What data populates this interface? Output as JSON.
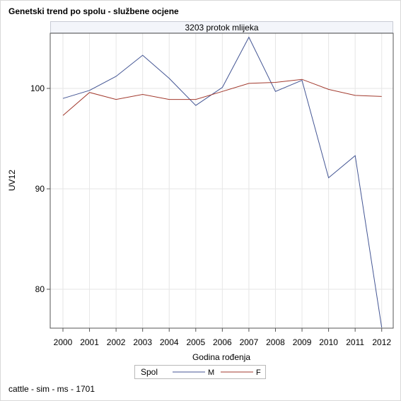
{
  "chart_data": {
    "type": "line",
    "title": "Genetski trend po spolu - službene ocjene",
    "panel_label": "3203 protok mlijeka",
    "xlabel": "Godina rođenja",
    "ylabel": "UV12",
    "categories": [
      "2000",
      "2001",
      "2002",
      "2003",
      "2004",
      "2005",
      "2006",
      "2007",
      "2008",
      "2009",
      "2010",
      "2011",
      "2012"
    ],
    "y_ticks": [
      80,
      90,
      100
    ],
    "ylim": [
      76.2,
      105.5
    ],
    "grid": true,
    "legend_title": "Spol",
    "legend_position": "bottom",
    "series": [
      {
        "name": "M",
        "color": "#445694",
        "values": [
          99.0,
          99.8,
          101.2,
          103.3,
          101.0,
          98.3,
          100.1,
          105.1,
          99.7,
          100.8,
          91.1,
          93.3,
          76.2
        ]
      },
      {
        "name": "F",
        "color": "#a23a2e",
        "values": [
          97.3,
          99.6,
          98.9,
          99.4,
          98.9,
          98.9,
          99.7,
          100.5,
          100.6,
          100.9,
          99.9,
          99.3,
          99.2
        ]
      }
    ]
  },
  "footnote": "cattle - sim - ms - 1701"
}
